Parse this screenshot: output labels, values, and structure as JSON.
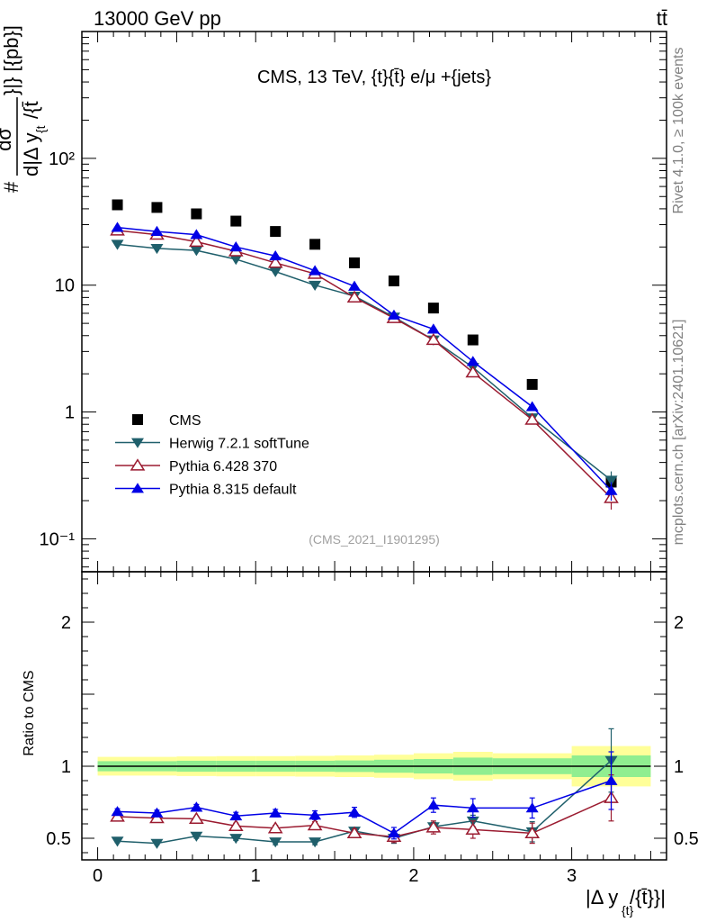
{
  "header": {
    "left_label": "13000 GeV pp",
    "right_label": "tt̄"
  },
  "side_labels": {
    "rivet": "Rivet 4.1.0, ≥ 100k events",
    "mcplots": "mcplots.cern.ch [arXiv:2401.10621]"
  },
  "colors": {
    "cms": "#000000",
    "herwig": "#1f5f6b",
    "pythia6": "#9b1b30",
    "pythia8": "#0000e6",
    "band_inner": "#90ee90",
    "band_outer": "#ffff99",
    "watermark": "#a0a0a0",
    "side_text": "#808080"
  },
  "chart_data": [
    {
      "id": "main",
      "type": "scatter",
      "title": "CMS, 13 TeV, {t}{t̄} e/μ +{jets}",
      "ylabel_top": "#",
      "ylabel_mid": "dσ",
      "ylabel_frac": "d|Δ y",
      "ylabel_sub": "{t",
      "ylabel_tail": "/{t̄",
      "ylabel_right": "}|} [{pb}]",
      "watermark": "(CMS_2021_I1901295)",
      "yscale": "log",
      "xlim": [
        -0.1,
        3.6
      ],
      "ylim": [
        0.055,
        1000
      ],
      "yticks": [
        {
          "value": 0.1,
          "label": "10⁻¹"
        },
        {
          "value": 1,
          "label": "1"
        },
        {
          "value": 10,
          "label": "10"
        },
        {
          "value": 100,
          "label": "10²"
        }
      ],
      "x": [
        0.125,
        0.375,
        0.625,
        0.875,
        1.125,
        1.375,
        1.625,
        1.875,
        2.125,
        2.375,
        2.75,
        3.25
      ],
      "series": [
        {
          "name": "CMS",
          "key": "cms",
          "marker": "square",
          "values": [
            43,
            41,
            36.5,
            32,
            26.5,
            21,
            15,
            10.8,
            6.6,
            3.7,
            1.65,
            0.28
          ],
          "err": [
            0,
            0,
            0,
            0,
            0,
            0,
            0,
            0,
            0,
            0,
            0,
            0
          ]
        },
        {
          "name": "Herwig 7.2.1 softTune",
          "key": "herwig",
          "marker": "tri-down",
          "line": true,
          "values": [
            21,
            19.5,
            18.8,
            16,
            12.8,
            10,
            8.2,
            5.6,
            3.7,
            2.25,
            0.9,
            0.29
          ],
          "err": [
            0.3,
            0.3,
            0.3,
            0.3,
            0.3,
            0.3,
            0.3,
            0.2,
            0.15,
            0.12,
            0.05,
            0.05
          ]
        },
        {
          "name": "Pythia 6.428 370",
          "key": "pythia6",
          "marker": "tri-up-open",
          "line": true,
          "values": [
            27,
            25,
            22,
            18.5,
            15,
            12.3,
            8,
            5.5,
            3.7,
            2.05,
            0.87,
            0.21
          ],
          "err": [
            0.4,
            0.4,
            0.4,
            0.3,
            0.3,
            0.3,
            0.3,
            0.2,
            0.15,
            0.15,
            0.06,
            0.04
          ]
        },
        {
          "name": "Pythia 8.315 default",
          "key": "pythia8",
          "marker": "tri-up",
          "line": true,
          "values": [
            28.5,
            26.5,
            25,
            20,
            17,
            13,
            9.8,
            5.8,
            4.5,
            2.5,
            1.1,
            0.24
          ],
          "err": [
            0.4,
            0.4,
            0.4,
            0.3,
            0.3,
            0.3,
            0.3,
            0.2,
            0.2,
            0.2,
            0.08,
            0.04
          ]
        }
      ],
      "legend": [
        {
          "name": "CMS",
          "key": "cms"
        },
        {
          "name": "Herwig 7.2.1 softTune",
          "key": "herwig"
        },
        {
          "name": "Pythia 6.428 370",
          "key": "pythia6"
        },
        {
          "name": "Pythia 8.315 default",
          "key": "pythia8"
        }
      ]
    },
    {
      "id": "ratio",
      "type": "line",
      "ylabel": "Ratio to CMS",
      "xlabel": "|Δ y",
      "xlabel_sub": "{t}",
      "xlabel_tail": "/{t̄}}|",
      "xlim": [
        -0.1,
        3.6
      ],
      "ylim": [
        0.35,
        2.35
      ],
      "xticks": [
        0,
        1,
        2,
        3
      ],
      "yticks": [
        0.5,
        1,
        2
      ],
      "bins": [
        0,
        0.25,
        0.5,
        0.75,
        1.0,
        1.25,
        1.5,
        1.75,
        2.0,
        2.25,
        2.5,
        3.0,
        3.5
      ],
      "band_inner": [
        0.035,
        0.035,
        0.038,
        0.038,
        0.038,
        0.038,
        0.04,
        0.045,
        0.05,
        0.06,
        0.055,
        0.075
      ],
      "band_outer": [
        0.065,
        0.065,
        0.068,
        0.07,
        0.07,
        0.072,
        0.075,
        0.08,
        0.09,
        0.1,
        0.09,
        0.14
      ],
      "x": [
        0.125,
        0.375,
        0.625,
        0.875,
        1.125,
        1.375,
        1.625,
        1.875,
        2.125,
        2.375,
        2.75,
        3.25
      ],
      "series": [
        {
          "name": "Herwig 7.2.1 softTune",
          "key": "herwig",
          "marker": "tri-down",
          "values": [
            0.48,
            0.465,
            0.515,
            0.5,
            0.475,
            0.475,
            0.55,
            0.5,
            0.58,
            0.62,
            0.545,
            1.04
          ],
          "err": [
            0.01,
            0.01,
            0.015,
            0.015,
            0.02,
            0.02,
            0.025,
            0.035,
            0.03,
            0.04,
            0.07,
            0.22
          ]
        },
        {
          "name": "Pythia 6.428 370",
          "key": "pythia6",
          "marker": "tri-up-open",
          "values": [
            0.65,
            0.64,
            0.635,
            0.585,
            0.57,
            0.59,
            0.535,
            0.51,
            0.575,
            0.56,
            0.535,
            0.78
          ],
          "err": [
            0.015,
            0.015,
            0.015,
            0.02,
            0.02,
            0.025,
            0.03,
            0.04,
            0.045,
            0.06,
            0.07,
            0.16
          ]
        },
        {
          "name": "Pythia 8.315 default",
          "key": "pythia8",
          "marker": "tri-up",
          "values": [
            0.685,
            0.675,
            0.715,
            0.655,
            0.675,
            0.66,
            0.68,
            0.535,
            0.73,
            0.71,
            0.71,
            0.9
          ],
          "err": [
            0.02,
            0.02,
            0.02,
            0.025,
            0.025,
            0.03,
            0.035,
            0.04,
            0.05,
            0.065,
            0.07,
            0.2
          ]
        }
      ]
    }
  ]
}
